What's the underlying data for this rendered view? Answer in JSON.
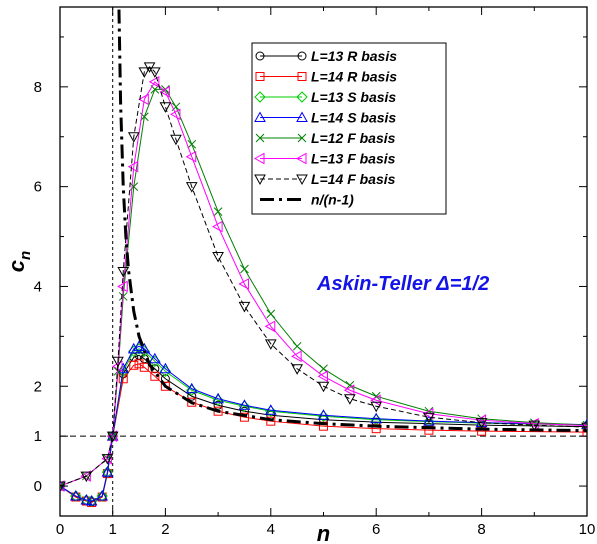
{
  "chart_data": {
    "type": "line",
    "title": "",
    "xlabel": "n",
    "ylabel": "c_n",
    "xlim": [
      0,
      10
    ],
    "ylim": [
      -0.6,
      9.6
    ],
    "x_ticks": [
      0,
      1,
      2,
      4,
      6,
      8,
      10
    ],
    "y_ticks": [
      0,
      1,
      2,
      4,
      6,
      8
    ],
    "grid": false,
    "legend_position": "top-right",
    "reference_lines": [
      {
        "orientation": "horizontal",
        "value": 1,
        "style": "dashed"
      },
      {
        "orientation": "vertical",
        "value": 1,
        "style": "dashed"
      }
    ],
    "annotation": {
      "text": "Askin-Teller Δ=1/2",
      "color": "#1414e6"
    },
    "series": [
      {
        "name": "L=13 R basis",
        "color": "#000000",
        "marker": "circle",
        "dash": "solid",
        "x": [
          0,
          0.3,
          0.5,
          0.6,
          0.8,
          0.9,
          1.0,
          1.2,
          1.4,
          1.5,
          1.6,
          1.8,
          2.0,
          2.5,
          3.0,
          3.5,
          4.0,
          5.0,
          6.0,
          7.0,
          8.0,
          10.0
        ],
        "y": [
          0,
          -0.22,
          -0.3,
          -0.32,
          -0.22,
          0.25,
          1.0,
          2.25,
          2.58,
          2.62,
          2.55,
          2.35,
          2.15,
          1.8,
          1.62,
          1.5,
          1.42,
          1.33,
          1.28,
          1.25,
          1.22,
          1.19
        ]
      },
      {
        "name": "L=14 R basis",
        "color": "#ff0000",
        "marker": "square",
        "dash": "solid",
        "x": [
          0,
          0.3,
          0.5,
          0.6,
          0.8,
          0.9,
          1.0,
          1.2,
          1.4,
          1.5,
          1.6,
          1.8,
          2.0,
          2.5,
          3.0,
          3.5,
          4.0,
          5.0,
          6.0,
          7.0,
          8.0,
          10.0
        ],
        "y": [
          0,
          -0.22,
          -0.3,
          -0.33,
          -0.22,
          0.25,
          1.0,
          2.15,
          2.42,
          2.45,
          2.38,
          2.2,
          2.0,
          1.68,
          1.5,
          1.38,
          1.3,
          1.2,
          1.15,
          1.12,
          1.1,
          1.08
        ]
      },
      {
        "name": "L=13 S basis",
        "color": "#00cc00",
        "marker": "diamond",
        "dash": "solid",
        "x": [
          0,
          0.3,
          0.5,
          0.6,
          0.8,
          0.9,
          1.0,
          1.2,
          1.4,
          1.5,
          1.6,
          1.8,
          2.0,
          2.5,
          3.0,
          3.5,
          4.0,
          5.0,
          6.0,
          7.0,
          8.0,
          10.0
        ],
        "y": [
          0,
          -0.2,
          -0.28,
          -0.3,
          -0.2,
          0.28,
          1.0,
          2.3,
          2.7,
          2.75,
          2.7,
          2.5,
          2.3,
          1.92,
          1.72,
          1.6,
          1.5,
          1.4,
          1.33,
          1.29,
          1.26,
          1.22
        ]
      },
      {
        "name": "L=14 S basis",
        "color": "#0000ff",
        "marker": "triangle-up",
        "dash": "solid",
        "x": [
          0,
          0.3,
          0.5,
          0.6,
          0.8,
          0.9,
          1.0,
          1.2,
          1.4,
          1.5,
          1.6,
          1.8,
          2.0,
          2.5,
          3.0,
          3.5,
          4.0,
          5.0,
          6.0,
          7.0,
          8.0,
          10.0
        ],
        "y": [
          0,
          -0.2,
          -0.28,
          -0.3,
          -0.2,
          0.28,
          1.0,
          2.35,
          2.75,
          2.8,
          2.75,
          2.55,
          2.35,
          1.95,
          1.75,
          1.62,
          1.52,
          1.42,
          1.35,
          1.3,
          1.27,
          1.23
        ]
      },
      {
        "name": "L=12 F basis",
        "color": "#008000",
        "marker": "x",
        "dash": "solid",
        "x": [
          0,
          0.5,
          0.9,
          1.0,
          1.1,
          1.2,
          1.4,
          1.6,
          1.8,
          2.0,
          2.2,
          2.5,
          3.0,
          3.5,
          4.0,
          4.5,
          5.0,
          5.5,
          6.0,
          7.0,
          8.0,
          9.0,
          10.0
        ],
        "y": [
          0,
          0.2,
          0.55,
          1.0,
          2.3,
          3.8,
          6.0,
          7.4,
          7.95,
          7.95,
          7.6,
          6.85,
          5.5,
          4.35,
          3.45,
          2.8,
          2.35,
          2.02,
          1.8,
          1.5,
          1.35,
          1.27,
          1.22
        ]
      },
      {
        "name": "L=13 F basis",
        "color": "#ff00ff",
        "marker": "triangle-left",
        "dash": "solid",
        "x": [
          0,
          0.5,
          0.9,
          1.0,
          1.1,
          1.2,
          1.4,
          1.6,
          1.8,
          2.0,
          2.2,
          2.5,
          3.0,
          3.5,
          4.0,
          4.5,
          5.0,
          5.5,
          6.0,
          7.0,
          8.0,
          9.0,
          10.0
        ],
        "y": [
          0,
          0.2,
          0.55,
          1.0,
          2.4,
          4.0,
          6.4,
          7.75,
          8.1,
          7.9,
          7.45,
          6.6,
          5.2,
          4.05,
          3.2,
          2.6,
          2.2,
          1.92,
          1.72,
          1.45,
          1.32,
          1.25,
          1.21
        ]
      },
      {
        "name": "L=14 F basis",
        "color": "#000000",
        "marker": "triangle-down",
        "dash": "dashed",
        "x": [
          0,
          0.5,
          0.9,
          1.0,
          1.1,
          1.2,
          1.4,
          1.6,
          1.7,
          1.8,
          2.0,
          2.2,
          2.5,
          3.0,
          3.5,
          4.0,
          4.5,
          5.0,
          5.5,
          6.0,
          7.0,
          8.0,
          9.0,
          10.0
        ],
        "y": [
          0,
          0.2,
          0.55,
          1.0,
          2.5,
          4.3,
          7.0,
          8.3,
          8.4,
          8.3,
          7.6,
          6.95,
          6.0,
          4.6,
          3.6,
          2.85,
          2.35,
          2.0,
          1.75,
          1.6,
          1.38,
          1.27,
          1.22,
          1.18
        ]
      },
      {
        "name": "n/(n-1)",
        "color": "#000000",
        "marker": "none",
        "dash": "dashdot",
        "x": [
          1.11,
          1.15,
          1.2,
          1.25,
          1.3,
          1.4,
          1.5,
          1.7,
          2.0,
          2.5,
          3.0,
          4.0,
          5.0,
          6.0,
          7.0,
          8.0,
          10.0
        ],
        "y": [
          10.09,
          7.67,
          6.0,
          5.0,
          4.33,
          3.5,
          3.0,
          2.43,
          2.0,
          1.67,
          1.5,
          1.33,
          1.25,
          1.2,
          1.17,
          1.14,
          1.11
        ]
      }
    ]
  }
}
